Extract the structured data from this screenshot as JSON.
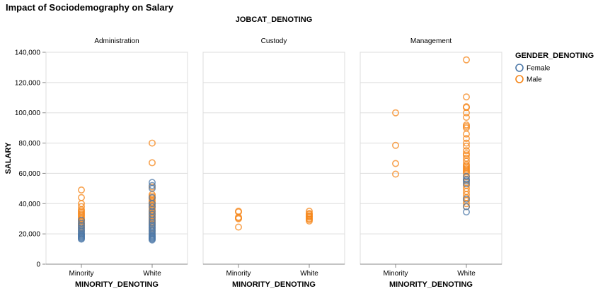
{
  "chart_data": {
    "type": "scatter",
    "title": "Impact of Sociodemography on Salary",
    "facet_title": "JOBCAT_DENOTING",
    "xlabel": "MINORITY_DENOTING",
    "ylabel": "SALARY",
    "categories": [
      "Minority",
      "White"
    ],
    "ylim": [
      0,
      140000
    ],
    "yticks": [
      0,
      20000,
      40000,
      60000,
      80000,
      100000,
      120000,
      140000
    ],
    "ytick_labels": [
      "0",
      "20,000",
      "40,000",
      "60,000",
      "80,000",
      "100,000",
      "120,000",
      "140,000"
    ],
    "grid": true,
    "legend": {
      "title": "GENDER_DENOTING",
      "position": "right",
      "entries": [
        {
          "name": "Female",
          "color": "#4c78a8"
        },
        {
          "name": "Male",
          "color": "#f58518"
        }
      ]
    },
    "facets": [
      {
        "name": "Administration",
        "series": [
          {
            "name": "Female",
            "points": [
              {
                "x": "Minority",
                "y": [
                  16500,
                  17000,
                  17500,
                  18000,
                  18500,
                  19000,
                  19500,
                  20000,
                  21000,
                  22000,
                  23000,
                  24000,
                  25500,
                  27000,
                  29000
                ]
              },
              {
                "x": "White",
                "y": [
                  16000,
                  16500,
                  17000,
                  17500,
                  18000,
                  18500,
                  19000,
                  20000,
                  21000,
                  22000,
                  23000,
                  24000,
                  25000,
                  26000,
                  27500,
                  29000,
                  31000,
                  33000,
                  35000,
                  38000,
                  40000,
                  44000,
                  50000,
                  52000,
                  54000
                ]
              }
            ]
          },
          {
            "name": "Male",
            "points": [
              {
                "x": "Minority",
                "y": [
                  20000,
                  22000,
                  24000,
                  25000,
                  26000,
                  27000,
                  28000,
                  29000,
                  30000,
                  31000,
                  32000,
                  33000,
                  34000,
                  35000,
                  36000,
                  38000,
                  40000,
                  44000,
                  49000
                ]
              },
              {
                "x": "White",
                "y": [
                  20000,
                  22000,
                  24000,
                  26000,
                  27000,
                  28000,
                  29000,
                  30000,
                  31000,
                  32000,
                  33000,
                  34000,
                  35000,
                  36000,
                  37000,
                  38000,
                  39000,
                  40000,
                  41000,
                  42000,
                  43000,
                  44000,
                  45000,
                  46000,
                  51000,
                  67000,
                  80000
                ]
              }
            ]
          }
        ]
      },
      {
        "name": "Custody",
        "series": [
          {
            "name": "Female",
            "points": [
              {
                "x": "Minority",
                "y": []
              },
              {
                "x": "White",
                "y": []
              }
            ]
          },
          {
            "name": "Male",
            "points": [
              {
                "x": "Minority",
                "y": [
                  24500,
                  30000,
                  30500,
                  31000,
                  34500,
                  35000
                ]
              },
              {
                "x": "White",
                "y": [
                  28500,
                  29500,
                  30000,
                  31000,
                  31500,
                  32000,
                  33000,
                  33500,
                  35000
                ]
              }
            ]
          }
        ]
      },
      {
        "name": "Management",
        "series": [
          {
            "name": "Female",
            "points": [
              {
                "x": "Minority",
                "y": []
              },
              {
                "x": "White",
                "y": [
                  34500,
                  38000,
                  43000,
                  53000,
                  55000,
                  56000,
                  58000
                ]
              }
            ]
          },
          {
            "name": "Male",
            "points": [
              {
                "x": "Minority",
                "y": [
                  59500,
                  66500,
                  78500,
                  100000
                ]
              },
              {
                "x": "White",
                "y": [
                  38000,
                  40000,
                  42000,
                  44000,
                  46000,
                  48000,
                  50000,
                  52000,
                  54000,
                  56000,
                  58000,
                  60000,
                  61000,
                  62000,
                  63000,
                  64000,
                  65000,
                  66000,
                  68000,
                  70000,
                  72000,
                  73000,
                  75000,
                  78000,
                  80000,
                  83000,
                  86000,
                  90000,
                  91000,
                  92000,
                  97000,
                  100000,
                  103500,
                  104000,
                  110500,
                  135000
                ]
              }
            ]
          }
        ]
      }
    ]
  }
}
